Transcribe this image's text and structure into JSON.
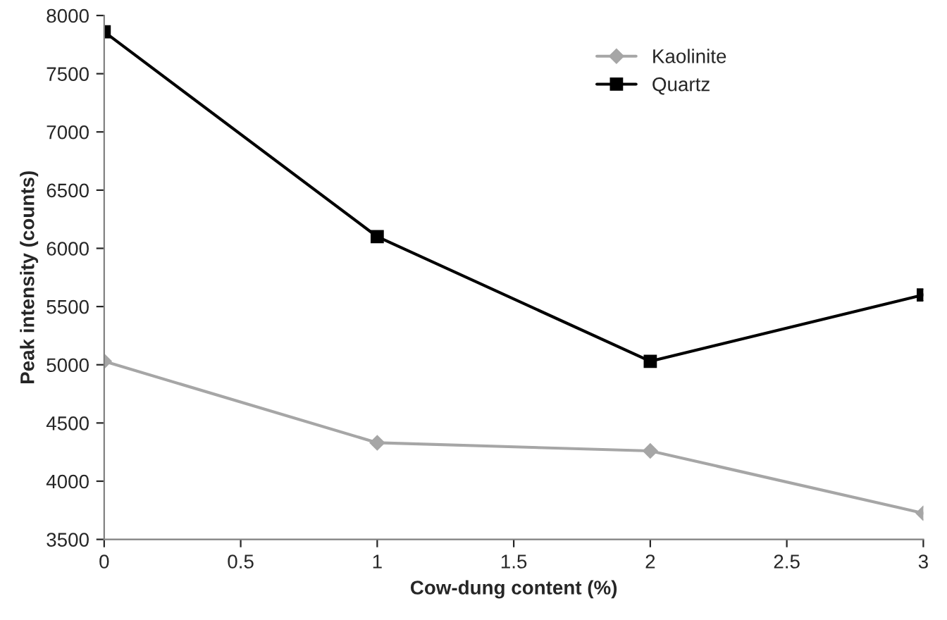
{
  "chart_data": {
    "type": "line",
    "xlabel": "Cow-dung content (%)",
    "ylabel": "Peak intensity (counts)",
    "x": [
      0,
      1,
      2,
      3
    ],
    "series": [
      {
        "name": "Kaolinite",
        "color": "#a6a6a6",
        "marker": "diamond",
        "values": [
          5030,
          4330,
          4260,
          3725
        ]
      },
      {
        "name": "Quartz",
        "color": "#000000",
        "marker": "square",
        "values": [
          7860,
          6100,
          5030,
          5600
        ]
      }
    ],
    "xlim": [
      0,
      3
    ],
    "xticks": [
      0,
      0.5,
      1,
      1.5,
      2,
      2.5,
      3
    ],
    "ylim": [
      3500,
      8000
    ],
    "yticks": [
      3500,
      4000,
      4500,
      5000,
      5500,
      6000,
      6500,
      7000,
      7500,
      8000
    ],
    "grid": false,
    "legend": "top right",
    "line_style": "solid"
  }
}
